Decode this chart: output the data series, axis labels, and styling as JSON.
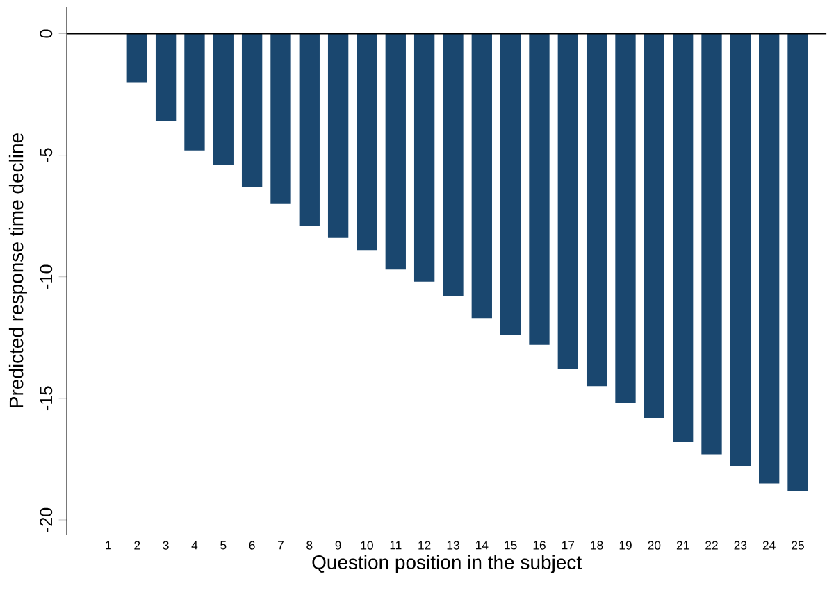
{
  "chart_data": {
    "type": "bar",
    "xlabel": "Question position in the subject",
    "ylabel": "Predicted response time decline",
    "categories": [
      "1",
      "2",
      "3",
      "4",
      "5",
      "6",
      "7",
      "8",
      "9",
      "10",
      "11",
      "12",
      "13",
      "14",
      "15",
      "16",
      "17",
      "18",
      "19",
      "20",
      "21",
      "22",
      "23",
      "24",
      "25"
    ],
    "values": [
      0,
      -2.0,
      -3.6,
      -4.8,
      -5.4,
      -6.3,
      -7.0,
      -7.9,
      -8.4,
      -8.9,
      -9.7,
      -10.2,
      -10.8,
      -11.7,
      -12.4,
      -12.8,
      -13.8,
      -14.5,
      -15.2,
      -15.8,
      -16.8,
      -17.3,
      -17.8,
      -18.5,
      -18.8
    ],
    "color": "#1a476f",
    "ylim": [
      -20.6,
      1.1
    ],
    "yticks": [
      0,
      -5,
      -10,
      -15,
      -20
    ],
    "ref_lines": [
      {
        "axis": "y",
        "value": 0,
        "color": "#000000"
      }
    ],
    "grid": false
  }
}
